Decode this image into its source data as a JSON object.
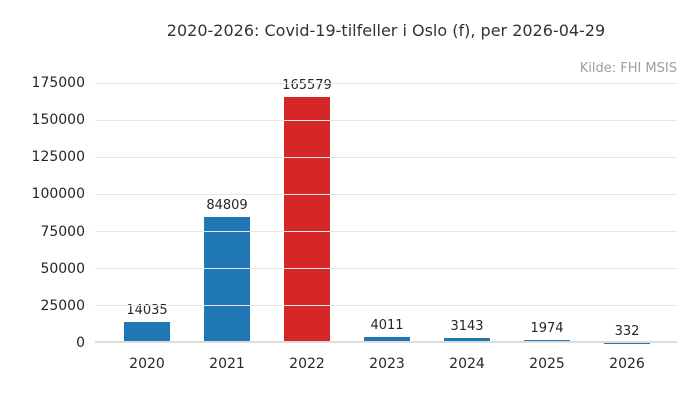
{
  "title": "2020-2026: Covid-19-tilfeller i Oslo (f), per 2026-04-29",
  "source_note": "Kilde: FHI MSIS",
  "chart_data": {
    "type": "bar",
    "title": "2020-2026: Covid-19-tilfeller i Oslo (f), per 2026-04-29",
    "annotation": "Kilde: FHI MSIS",
    "categories": [
      "2020",
      "2021",
      "2022",
      "2023",
      "2024",
      "2025",
      "2026"
    ],
    "values": [
      14035,
      84809,
      165579,
      4011,
      3143,
      1974,
      332
    ],
    "bar_colors": [
      "#1f77b4",
      "#1f77b4",
      "#d62728",
      "#1f77b4",
      "#1f77b4",
      "#1f77b4",
      "#1f77b4"
    ],
    "value_labels": [
      "14035",
      "84809",
      "165579",
      "4011",
      "3143",
      "1974",
      "332"
    ],
    "xlabel": "",
    "ylabel": "",
    "ylim": [
      0,
      175000
    ],
    "yticks": [
      0,
      25000,
      50000,
      75000,
      100000,
      125000,
      150000,
      175000
    ],
    "grid": "horizontal-only",
    "legend": "none",
    "colors": {
      "default_bar": "#1f77b4",
      "highlight_bar": "#d62728",
      "gridline": "#e6e6e6",
      "zero_line": "#dcdcdc",
      "text": "#262626",
      "title_text": "#333333",
      "muted_text": "#9e9e9e",
      "background": "#ffffff"
    }
  }
}
